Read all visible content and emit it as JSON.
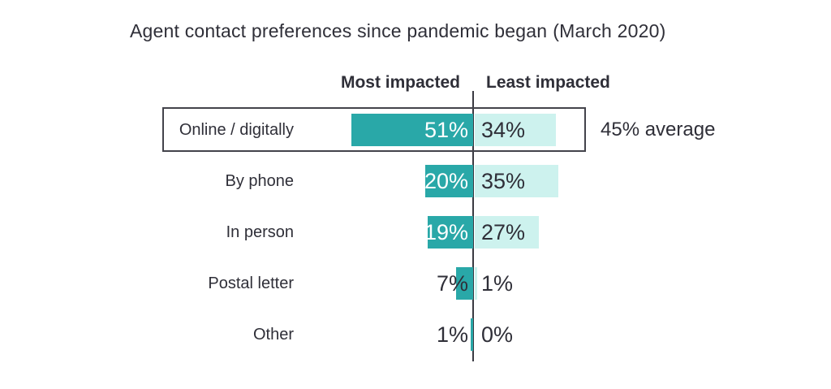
{
  "title": {
    "main": "Agent contact preferences since pandemic began",
    "suffix": "(March 2020)"
  },
  "columns": {
    "most": "Most impacted",
    "least": "Least impacted"
  },
  "average_note": "45% average",
  "colors": {
    "most_bar": "#29a8a8",
    "least_bar": "#cdf2ee",
    "text": "#2f2f38",
    "axis": "#3a3a42"
  },
  "chart_data": {
    "type": "bar",
    "orientation": "horizontal-diverging",
    "title": "Agent contact preferences since pandemic began (March 2020)",
    "categories": [
      "Online / digitally",
      "By phone",
      "In person",
      "Postal letter",
      "Other"
    ],
    "series": [
      {
        "name": "Most impacted",
        "values": [
          51,
          20,
          19,
          7,
          1
        ]
      },
      {
        "name": "Least impacted",
        "values": [
          34,
          35,
          27,
          1,
          0
        ]
      }
    ],
    "value_labels": [
      [
        "51%",
        "34%"
      ],
      [
        "20%",
        "35%"
      ],
      [
        "19%",
        "27%"
      ],
      [
        "7%",
        "1%"
      ],
      [
        "1%",
        "0%"
      ]
    ],
    "highlighted_category": "Online / digitally",
    "annotation": "45% average",
    "legend_position": "top",
    "grid": false,
    "xlim": [
      0,
      60
    ]
  }
}
